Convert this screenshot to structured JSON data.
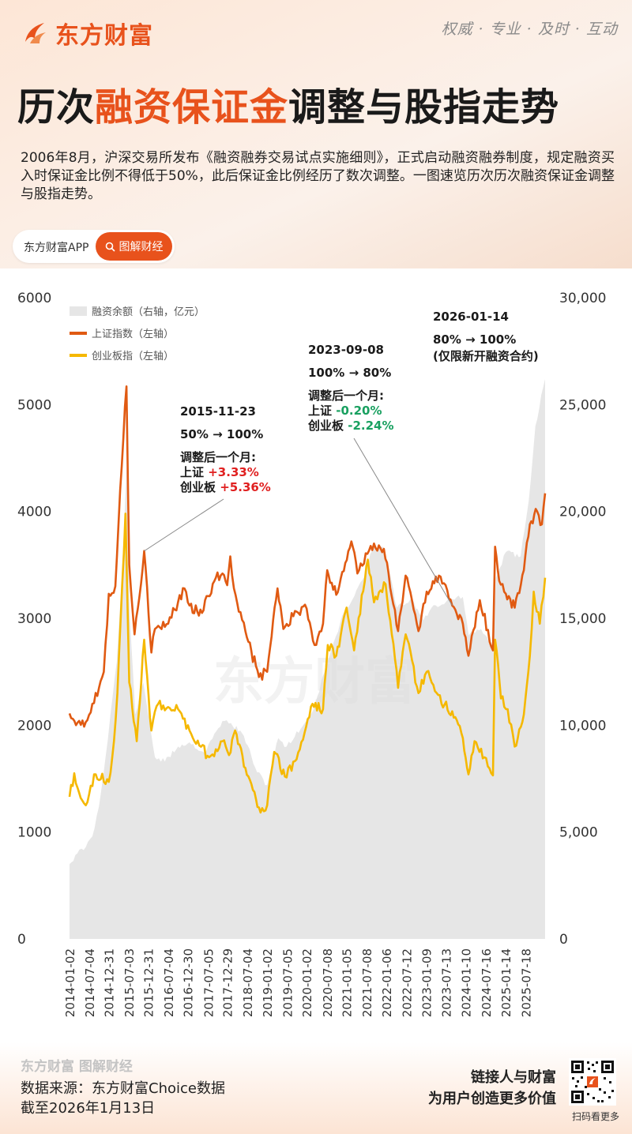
{
  "header": {
    "brand": "东方财富",
    "slogan": "权威 · 专业 · 及时 · 互动",
    "title_pre": "历次",
    "title_hl": "融资保证金",
    "title_post": "调整与股指走势",
    "intro": "2006年8月，沪深交易所发布《融资融券交易试点实施细则》，正式启动融资融券制度，规定融资买入时保证金比例不得低于50%，此后保证金比例经历了数次调整。一图速览历次历次融资保证金调整与股指走势。",
    "tag_app": "东方财富APP",
    "tag_pill": "图解财经"
  },
  "footer": {
    "brand": "东方财富 图解财经",
    "source": "数据来源：东方财富Choice数据",
    "cutoff": "截至2026年1月13日",
    "slogan1": "链接人与财富",
    "slogan2": "为用户创造更多价值",
    "qr_caption": "扫码看更多"
  },
  "colors": {
    "accent": "#e8521c",
    "sh": "#e05a12",
    "cy": "#f5b800",
    "margin": "#e6e6e6",
    "up": "#e02020",
    "down": "#19a060"
  },
  "icons": [
    "flame-logo-icon",
    "search-icon",
    "qr-code-icon"
  ],
  "chart_data": {
    "type": "line",
    "watermark": "东方财富",
    "left_ylim": [
      0,
      6000
    ],
    "left_ticks": [
      "0",
      "1000",
      "2000",
      "3000",
      "4000",
      "5000",
      "6000"
    ],
    "right_ylim": [
      0,
      30000
    ],
    "right_ticks": [
      "0",
      "5,000",
      "10,000",
      "15,000",
      "20,000",
      "25,000",
      "30,000"
    ],
    "xlim": [
      "2014-01-02",
      "2026-01-13"
    ],
    "x_ticks": [
      "2014-01-02",
      "2014-07-04",
      "2014-12-31",
      "2015-07-03",
      "2015-12-31",
      "2016-07-04",
      "2016-12-30",
      "2017-07-05",
      "2017-12-29",
      "2018-07-04",
      "2019-01-02",
      "2019-07-05",
      "2020-01-02",
      "2020-07-08",
      "2021-01-05",
      "2021-07-08",
      "2022-01-06",
      "2022-07-12",
      "2023-01-09",
      "2023-07-13",
      "2024-01-10",
      "2024-07-16",
      "2025-01-14",
      "2025-07-18"
    ],
    "series": [
      {
        "name": "融资余额（右轴，亿元）",
        "kind": "area",
        "axis": "right",
        "points": [
          [
            "2014-01-02",
            3500
          ],
          [
            "2014-03-15",
            4000
          ],
          [
            "2014-06-01",
            4300
          ],
          [
            "2014-08-01",
            4800
          ],
          [
            "2014-10-01",
            6200
          ],
          [
            "2014-12-01",
            8500
          ],
          [
            "2015-01-15",
            10500
          ],
          [
            "2015-03-15",
            13000
          ],
          [
            "2015-05-01",
            17000
          ],
          [
            "2015-06-18",
            22500
          ],
          [
            "2015-07-10",
            15500
          ],
          [
            "2015-09-01",
            10500
          ],
          [
            "2015-11-15",
            12000
          ],
          [
            "2016-01-15",
            10000
          ],
          [
            "2016-03-01",
            8500
          ],
          [
            "2016-06-01",
            8300
          ],
          [
            "2016-10-01",
            9000
          ],
          [
            "2017-01-15",
            9200
          ],
          [
            "2017-06-01",
            8700
          ],
          [
            "2017-11-15",
            10200
          ],
          [
            "2018-02-01",
            10100
          ],
          [
            "2018-06-01",
            9500
          ],
          [
            "2018-10-01",
            7800
          ],
          [
            "2019-01-02",
            7200
          ],
          [
            "2019-04-15",
            9400
          ],
          [
            "2019-07-01",
            9000
          ],
          [
            "2019-12-15",
            10100
          ],
          [
            "2020-03-01",
            10700
          ],
          [
            "2020-07-15",
            13000
          ],
          [
            "2020-12-15",
            15300
          ],
          [
            "2021-06-01",
            16800
          ],
          [
            "2021-09-15",
            18400
          ],
          [
            "2021-12-15",
            18300
          ],
          [
            "2022-04-15",
            15500
          ],
          [
            "2022-09-01",
            15900
          ],
          [
            "2022-12-15",
            14900
          ],
          [
            "2023-03-01",
            15500
          ],
          [
            "2023-09-08",
            15900
          ],
          [
            "2023-12-15",
            16000
          ],
          [
            "2024-02-07",
            14200
          ],
          [
            "2024-06-01",
            14500
          ],
          [
            "2024-09-20",
            13600
          ],
          [
            "2024-10-15",
            16900
          ],
          [
            "2025-01-15",
            18100
          ],
          [
            "2025-06-01",
            17900
          ],
          [
            "2025-08-15",
            20500
          ],
          [
            "2025-10-15",
            24000
          ],
          [
            "2026-01-13",
            26200
          ]
        ]
      },
      {
        "name": "上证指数（左轴）",
        "kind": "line",
        "axis": "left",
        "points": [
          [
            "2014-01-02",
            2110
          ],
          [
            "2014-02-01",
            2060
          ],
          [
            "2014-04-01",
            2040
          ],
          [
            "2014-06-01",
            2030
          ],
          [
            "2014-08-01",
            2200
          ],
          [
            "2014-10-01",
            2350
          ],
          [
            "2014-11-15",
            2500
          ],
          [
            "2014-12-31",
            3230
          ],
          [
            "2015-03-01",
            3300
          ],
          [
            "2015-04-15",
            4200
          ],
          [
            "2015-06-12",
            5170
          ],
          [
            "2015-07-08",
            3500
          ],
          [
            "2015-08-26",
            2850
          ],
          [
            "2015-11-23",
            3630
          ],
          [
            "2016-01-28",
            2680
          ],
          [
            "2016-03-01",
            2900
          ],
          [
            "2016-06-01",
            2920
          ],
          [
            "2016-09-01",
            3080
          ],
          [
            "2016-11-29",
            3280
          ],
          [
            "2017-01-15",
            3120
          ],
          [
            "2017-05-10",
            3050
          ],
          [
            "2017-09-15",
            3380
          ],
          [
            "2017-11-15",
            3420
          ],
          [
            "2017-12-29",
            3310
          ],
          [
            "2018-01-26",
            3580
          ],
          [
            "2018-03-01",
            3280
          ],
          [
            "2018-06-15",
            2880
          ],
          [
            "2018-10-18",
            2450
          ],
          [
            "2019-01-02",
            2500
          ],
          [
            "2019-04-08",
            3280
          ],
          [
            "2019-06-01",
            2900
          ],
          [
            "2019-09-01",
            3020
          ],
          [
            "2020-01-02",
            3090
          ],
          [
            "2020-03-15",
            2750
          ],
          [
            "2020-06-01",
            2950
          ],
          [
            "2020-07-10",
            3450
          ],
          [
            "2020-10-01",
            3220
          ],
          [
            "2021-02-18",
            3720
          ],
          [
            "2021-04-15",
            3420
          ],
          [
            "2021-09-15",
            3700
          ],
          [
            "2021-12-15",
            3650
          ],
          [
            "2022-04-26",
            2880
          ],
          [
            "2022-07-04",
            3400
          ],
          [
            "2022-10-31",
            2880
          ],
          [
            "2023-01-15",
            3250
          ],
          [
            "2023-05-08",
            3400
          ],
          [
            "2023-09-08",
            3120
          ],
          [
            "2023-12-15",
            2950
          ],
          [
            "2024-02-05",
            2650
          ],
          [
            "2024-05-20",
            3170
          ],
          [
            "2024-09-18",
            2700
          ],
          [
            "2024-10-08",
            3670
          ],
          [
            "2024-11-15",
            3350
          ],
          [
            "2025-01-15",
            3230
          ],
          [
            "2025-04-07",
            3100
          ],
          [
            "2025-07-01",
            3450
          ],
          [
            "2025-08-25",
            3880
          ],
          [
            "2025-11-01",
            4000
          ],
          [
            "2025-12-15",
            3880
          ],
          [
            "2026-01-13",
            4170
          ]
        ]
      },
      {
        "name": "创业板指（左轴）",
        "kind": "line",
        "axis": "left",
        "points": [
          [
            "2014-01-02",
            1330
          ],
          [
            "2014-02-15",
            1550
          ],
          [
            "2014-04-15",
            1320
          ],
          [
            "2014-06-01",
            1250
          ],
          [
            "2014-09-01",
            1540
          ],
          [
            "2014-12-31",
            1470
          ],
          [
            "2015-02-01",
            1700
          ],
          [
            "2015-03-20",
            2300
          ],
          [
            "2015-06-03",
            3980
          ],
          [
            "2015-07-08",
            2400
          ],
          [
            "2015-09-15",
            1850
          ],
          [
            "2015-11-23",
            2800
          ],
          [
            "2016-01-28",
            1950
          ],
          [
            "2016-04-01",
            2200
          ],
          [
            "2016-07-01",
            2170
          ],
          [
            "2016-10-01",
            2150
          ],
          [
            "2017-01-15",
            1950
          ],
          [
            "2017-07-15",
            1700
          ],
          [
            "2017-11-15",
            1850
          ],
          [
            "2018-01-15",
            1720
          ],
          [
            "2018-03-12",
            1950
          ],
          [
            "2018-06-15",
            1600
          ],
          [
            "2018-10-18",
            1230
          ],
          [
            "2019-01-02",
            1250
          ],
          [
            "2019-03-08",
            1750
          ],
          [
            "2019-06-15",
            1520
          ],
          [
            "2019-10-01",
            1680
          ],
          [
            "2020-02-25",
            2200
          ],
          [
            "2020-06-01",
            2150
          ],
          [
            "2020-07-15",
            2750
          ],
          [
            "2020-10-01",
            2650
          ],
          [
            "2021-01-05",
            3100
          ],
          [
            "2021-03-15",
            2700
          ],
          [
            "2021-07-20",
            3550
          ],
          [
            "2021-09-15",
            3150
          ],
          [
            "2021-12-31",
            3320
          ],
          [
            "2022-04-26",
            2350
          ],
          [
            "2022-07-05",
            2850
          ],
          [
            "2022-10-31",
            2300
          ],
          [
            "2023-01-15",
            2500
          ],
          [
            "2023-06-01",
            2200
          ],
          [
            "2023-09-08",
            2130
          ],
          [
            "2023-12-15",
            1880
          ],
          [
            "2024-02-05",
            1540
          ],
          [
            "2024-04-01",
            1850
          ],
          [
            "2024-07-01",
            1700
          ],
          [
            "2024-09-18",
            1530
          ],
          [
            "2024-10-08",
            2800
          ],
          [
            "2024-12-01",
            2250
          ],
          [
            "2025-02-01",
            2150
          ],
          [
            "2025-04-07",
            1800
          ],
          [
            "2025-07-01",
            2100
          ],
          [
            "2025-08-25",
            2650
          ],
          [
            "2025-09-30",
            3250
          ],
          [
            "2025-11-25",
            2950
          ],
          [
            "2026-01-13",
            3380
          ]
        ]
      }
    ],
    "annotations": [
      {
        "date": "2015-11-23",
        "change": "50% → 100%",
        "label": "调整后一个月:",
        "sh": "上证",
        "sh_val": "+3.33%",
        "cy": "创业板",
        "cy_val": "+5.36%"
      },
      {
        "date": "2023-09-08",
        "change": "100% → 80%",
        "label": "调整后一个月:",
        "sh": "上证",
        "sh_val": "-0.20%",
        "cy": "创业板",
        "cy_val": "-2.24%"
      },
      {
        "date": "2026-01-14",
        "change": "80% → 100%",
        "note": "(仅限新开融资合约)"
      }
    ]
  }
}
